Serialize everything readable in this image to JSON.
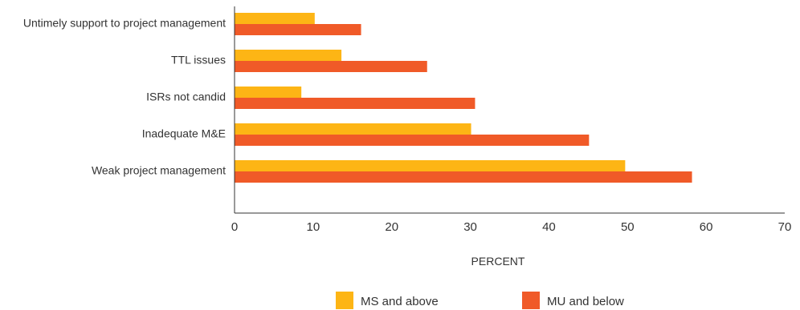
{
  "chart_data": {
    "type": "bar",
    "orientation": "horizontal",
    "categories": [
      "Untimely support to project management",
      "TTL issues",
      "ISRs not candid",
      "Inadequate M&E",
      "Weak project management"
    ],
    "series": [
      {
        "name": "MS and above",
        "color": "#FDB515",
        "values": [
          10.2,
          13.6,
          8.5,
          30.1,
          49.7
        ]
      },
      {
        "name": "MU and below",
        "color": "#F05A28",
        "values": [
          16.1,
          24.5,
          30.6,
          45.1,
          58.2
        ]
      }
    ],
    "xlabel": "PERCENT",
    "ylabel": "",
    "xlim": [
      0,
      70
    ],
    "xticks": [
      "0",
      "10",
      "20",
      "30",
      "40",
      "50",
      "60",
      "70"
    ],
    "grid": false,
    "legend": "bottom"
  }
}
